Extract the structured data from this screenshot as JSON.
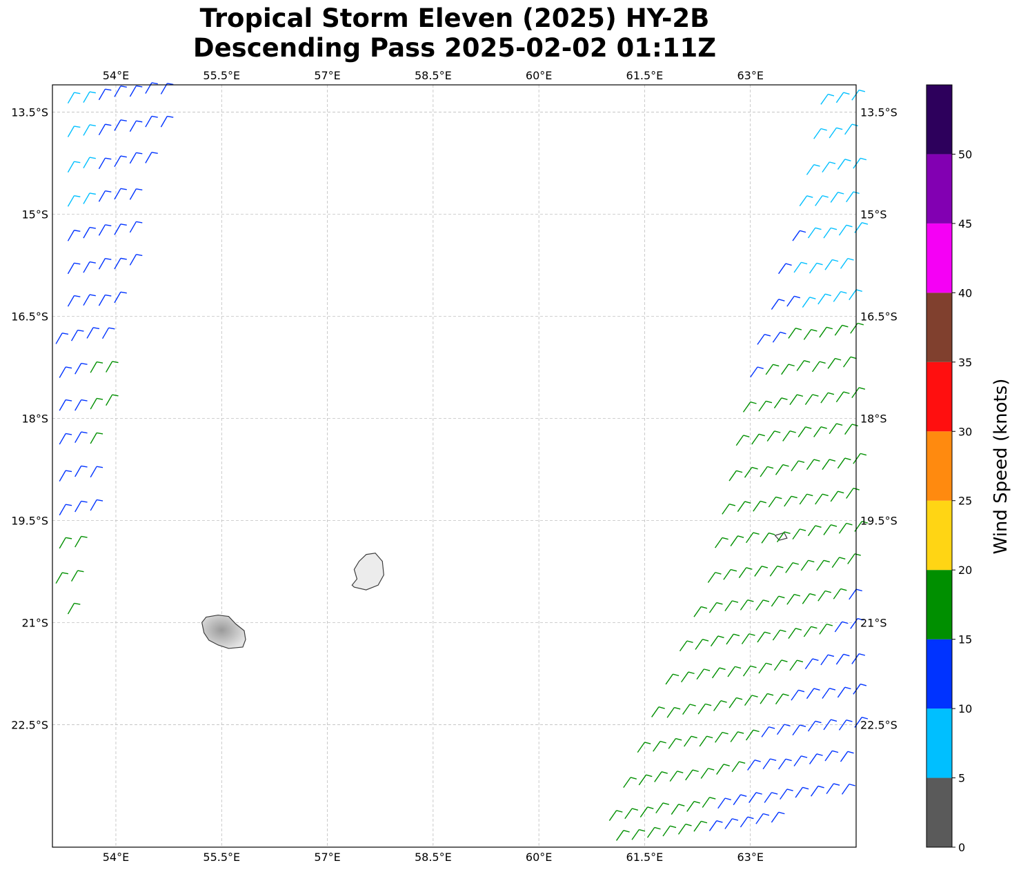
{
  "title": {
    "line1": "Tropical Storm Eleven (2025) HY-2B",
    "line2": "Descending Pass 2025-02-02 01:11Z"
  },
  "map": {
    "lon_range": [
      53.1,
      64.5
    ],
    "lat_range": [
      -24.3,
      -13.1
    ],
    "lon_ticks": [
      {
        "value": 54.0,
        "label": "54°E"
      },
      {
        "value": 55.5,
        "label": "55.5°E"
      },
      {
        "value": 57.0,
        "label": "57°E"
      },
      {
        "value": 58.5,
        "label": "58.5°E"
      },
      {
        "value": 60.0,
        "label": "60°E"
      },
      {
        "value": 61.5,
        "label": "61.5°E"
      },
      {
        "value": 63.0,
        "label": "63°E"
      }
    ],
    "lat_ticks": [
      {
        "value": -13.5,
        "label": "13.5°S"
      },
      {
        "value": -15.0,
        "label": "15°S"
      },
      {
        "value": -16.5,
        "label": "16.5°S"
      },
      {
        "value": -18.0,
        "label": "18°S"
      },
      {
        "value": -19.5,
        "label": "19.5°S"
      },
      {
        "value": -21.0,
        "label": "21°S"
      },
      {
        "value": -22.5,
        "label": "22.5°S"
      }
    ],
    "gridlines": true,
    "islands": [
      {
        "name": "Reunion",
        "outline": [
          [
            55.22,
            -21.0
          ],
          [
            55.28,
            -20.92
          ],
          [
            55.45,
            -20.89
          ],
          [
            55.6,
            -20.91
          ],
          [
            55.7,
            -21.02
          ],
          [
            55.82,
            -21.12
          ],
          [
            55.84,
            -21.25
          ],
          [
            55.8,
            -21.36
          ],
          [
            55.6,
            -21.38
          ],
          [
            55.45,
            -21.33
          ],
          [
            55.32,
            -21.26
          ],
          [
            55.25,
            -21.15
          ]
        ]
      },
      {
        "name": "Mauritius",
        "outline": [
          [
            57.55,
            -20.0
          ],
          [
            57.68,
            -19.98
          ],
          [
            57.78,
            -20.1
          ],
          [
            57.8,
            -20.3
          ],
          [
            57.72,
            -20.45
          ],
          [
            57.55,
            -20.52
          ],
          [
            57.38,
            -20.48
          ],
          [
            57.35,
            -20.45
          ],
          [
            57.42,
            -20.36
          ],
          [
            57.38,
            -20.22
          ],
          [
            57.45,
            -20.1
          ]
        ]
      },
      {
        "name": "Cargados Carajos",
        "outline": [
          [
            63.35,
            -19.72
          ],
          [
            63.48,
            -19.68
          ],
          [
            63.52,
            -19.76
          ],
          [
            63.41,
            -19.79
          ]
        ]
      }
    ]
  },
  "wind_swaths": [
    {
      "name": "west",
      "rows": [
        {
          "lat": -13.4,
          "lon0": 53.1,
          "lon1": 54.7
        },
        {
          "lat": -13.9,
          "lon0": 53.1,
          "lon1": 54.65
        },
        {
          "lat": -14.4,
          "lon0": 53.1,
          "lon1": 54.5
        },
        {
          "lat": -14.9,
          "lon0": 53.1,
          "lon1": 54.4
        },
        {
          "lat": -15.4,
          "lon0": 53.1,
          "lon1": 54.3
        },
        {
          "lat": -15.9,
          "lon0": 53.1,
          "lon1": 54.2
        },
        {
          "lat": -16.4,
          "lon0": 53.1,
          "lon1": 54.1
        },
        {
          "lat": -16.9,
          "lon0": 53.15,
          "lon1": 54.0
        },
        {
          "lat": -17.4,
          "lon0": 53.2,
          "lon1": 53.95
        },
        {
          "lat": -17.9,
          "lon0": 53.2,
          "lon1": 53.9
        },
        {
          "lat": -18.4,
          "lon0": 53.2,
          "lon1": 53.85
        },
        {
          "lat": -18.9,
          "lon0": 53.2,
          "lon1": 53.8
        },
        {
          "lat": -19.4,
          "lon0": 53.2,
          "lon1": 53.7
        },
        {
          "lat": -19.9,
          "lon0": 53.2,
          "lon1": 53.6
        },
        {
          "lat": -20.4,
          "lon0": 53.15,
          "lon1": 53.5
        },
        {
          "lat": -20.9,
          "lon0": 53.1,
          "lon1": 53.4
        },
        {
          "lat": -21.3,
          "lon0": 53.1,
          "lon1": 53.3
        }
      ]
    },
    {
      "name": "east",
      "rows": [
        {
          "lat": -13.4,
          "lon0": 64.0,
          "lon1": 64.5
        },
        {
          "lat": -13.9,
          "lon0": 63.9,
          "lon1": 64.5
        },
        {
          "lat": -14.4,
          "lon0": 63.8,
          "lon1": 64.5
        },
        {
          "lat": -14.9,
          "lon0": 63.7,
          "lon1": 64.5
        },
        {
          "lat": -15.4,
          "lon0": 63.6,
          "lon1": 64.5
        },
        {
          "lat": -15.9,
          "lon0": 63.4,
          "lon1": 64.5
        },
        {
          "lat": -16.4,
          "lon0": 63.3,
          "lon1": 64.5
        },
        {
          "lat": -16.9,
          "lon0": 63.1,
          "lon1": 64.5
        },
        {
          "lat": -17.4,
          "lon0": 63.0,
          "lon1": 64.5
        },
        {
          "lat": -17.9,
          "lon0": 62.9,
          "lon1": 64.5
        },
        {
          "lat": -18.4,
          "lon0": 62.8,
          "lon1": 64.5
        },
        {
          "lat": -18.9,
          "lon0": 62.7,
          "lon1": 64.5
        },
        {
          "lat": -19.4,
          "lon0": 62.6,
          "lon1": 64.5
        },
        {
          "lat": -19.9,
          "lon0": 62.5,
          "lon1": 64.5
        },
        {
          "lat": -20.4,
          "lon0": 62.4,
          "lon1": 64.5
        },
        {
          "lat": -20.9,
          "lon0": 62.2,
          "lon1": 64.5
        },
        {
          "lat": -21.4,
          "lon0": 62.0,
          "lon1": 64.5
        },
        {
          "lat": -21.9,
          "lon0": 61.8,
          "lon1": 64.5
        },
        {
          "lat": -22.4,
          "lon0": 61.6,
          "lon1": 64.5
        },
        {
          "lat": -22.9,
          "lon0": 61.4,
          "lon1": 64.5
        },
        {
          "lat": -23.4,
          "lon0": 61.2,
          "lon1": 64.5
        },
        {
          "lat": -23.9,
          "lon0": 61.0,
          "lon1": 64.5
        },
        {
          "lat": -24.2,
          "lon0": 61.1,
          "lon1": 63.3
        }
      ]
    }
  ],
  "colorbar": {
    "title": "Wind Speed (knots)",
    "range": [
      0,
      55
    ],
    "bins": [
      {
        "from": 0,
        "to": 5,
        "color": "#5a5a5a"
      },
      {
        "from": 5,
        "to": 10,
        "color": "#00bfff"
      },
      {
        "from": 10,
        "to": 15,
        "color": "#0033ff"
      },
      {
        "from": 15,
        "to": 20,
        "color": "#008f00"
      },
      {
        "from": 20,
        "to": 25,
        "color": "#ffd514"
      },
      {
        "from": 25,
        "to": 30,
        "color": "#ff8a0f"
      },
      {
        "from": 30,
        "to": 35,
        "color": "#ff0f0f"
      },
      {
        "from": 35,
        "to": 40,
        "color": "#80402e"
      },
      {
        "from": 40,
        "to": 45,
        "color": "#f500f5"
      },
      {
        "from": 45,
        "to": 50,
        "color": "#8200b2"
      },
      {
        "from": 50,
        "to": 55,
        "color": "#2d005c"
      }
    ],
    "tick_labels": [
      "0",
      "5",
      "10",
      "15",
      "20",
      "25",
      "30",
      "35",
      "40",
      "45",
      "50"
    ]
  }
}
